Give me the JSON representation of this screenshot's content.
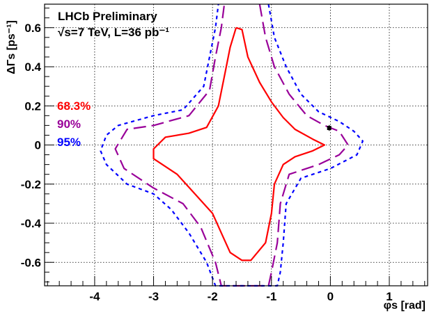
{
  "chart_data": {
    "type": "contour",
    "title_lines": [
      "LHCb Preliminary",
      "√s=7 TeV, L=36 pb⁻¹"
    ],
    "xlabel": "φs [rad]",
    "ylabel": "ΔΓs [ps⁻¹]",
    "xlim": [
      -4.85,
      1.65
    ],
    "ylim": [
      -0.72,
      0.72
    ],
    "x_ticks": [
      -4,
      -3,
      -2,
      -1,
      0,
      1
    ],
    "y_ticks": [
      -0.6,
      -0.4,
      -0.2,
      0,
      0.2,
      0.4,
      0.6
    ],
    "x_tick_labels": [
      "-4",
      "-3",
      "-2",
      "-1",
      "0",
      "1"
    ],
    "y_tick_labels": [
      "-0.6",
      "-0.4",
      "-0.2",
      "0",
      "0.2",
      "0.4",
      "0.6"
    ],
    "grid": true,
    "legend_placement": "left",
    "series": [
      {
        "name": "68.3%",
        "color": "#ff0000",
        "style": "solid",
        "points": [
          [
            -1.6,
            0.6
          ],
          [
            -1.5,
            0.59
          ],
          [
            -1.4,
            0.45
          ],
          [
            -1.2,
            0.32
          ],
          [
            -1.0,
            0.22
          ],
          [
            -0.8,
            0.14
          ],
          [
            -0.6,
            0.08
          ],
          [
            -0.3,
            0.03
          ],
          [
            -0.1,
            0.0
          ],
          [
            -0.3,
            -0.03
          ],
          [
            -0.6,
            -0.06
          ],
          [
            -0.8,
            -0.1
          ],
          [
            -0.95,
            -0.2
          ],
          [
            -1.0,
            -0.35
          ],
          [
            -1.1,
            -0.5
          ],
          [
            -1.35,
            -0.59
          ],
          [
            -1.5,
            -0.59
          ],
          [
            -1.7,
            -0.55
          ],
          [
            -1.85,
            -0.45
          ],
          [
            -2.0,
            -0.35
          ],
          [
            -2.3,
            -0.25
          ],
          [
            -2.6,
            -0.15
          ],
          [
            -3.0,
            -0.07
          ],
          [
            -3.0,
            -0.02
          ],
          [
            -2.8,
            0.04
          ],
          [
            -2.4,
            0.06
          ],
          [
            -2.1,
            0.09
          ],
          [
            -1.9,
            0.2
          ],
          [
            -1.8,
            0.35
          ],
          [
            -1.7,
            0.5
          ],
          [
            -1.6,
            0.6
          ]
        ]
      },
      {
        "name": "90%",
        "color": "#990099",
        "style": "longdash",
        "points": [
          [
            -1.2,
            0.72
          ],
          [
            -1.1,
            0.55
          ],
          [
            -0.95,
            0.4
          ],
          [
            -0.7,
            0.26
          ],
          [
            -0.4,
            0.15
          ],
          [
            -0.1,
            0.1
          ],
          [
            0.15,
            0.07
          ],
          [
            0.3,
            0.0
          ],
          [
            0.15,
            -0.05
          ],
          [
            -0.2,
            -0.1
          ],
          [
            -0.7,
            -0.15
          ],
          [
            -0.85,
            -0.3
          ],
          [
            -0.9,
            -0.5
          ],
          [
            -1.0,
            -0.65
          ],
          [
            -1.05,
            -0.72
          ],
          [
            -1.85,
            -0.72
          ],
          [
            -1.95,
            -0.6
          ],
          [
            -2.2,
            -0.42
          ],
          [
            -2.5,
            -0.3
          ],
          [
            -3.0,
            -0.22
          ],
          [
            -3.5,
            -0.12
          ],
          [
            -3.65,
            -0.02
          ],
          [
            -3.45,
            0.08
          ],
          [
            -3.0,
            0.1
          ],
          [
            -2.4,
            0.15
          ],
          [
            -2.05,
            0.28
          ],
          [
            -1.95,
            0.45
          ],
          [
            -1.85,
            0.6
          ],
          [
            -1.8,
            0.72
          ]
        ]
      },
      {
        "name": "95%",
        "color": "#0000ff",
        "style": "dashed",
        "points": [
          [
            -1.05,
            0.72
          ],
          [
            -0.95,
            0.55
          ],
          [
            -0.75,
            0.4
          ],
          [
            -0.5,
            0.26
          ],
          [
            -0.2,
            0.17
          ],
          [
            0.15,
            0.12
          ],
          [
            0.4,
            0.07
          ],
          [
            0.55,
            0.02
          ],
          [
            0.45,
            -0.05
          ],
          [
            0.0,
            -0.12
          ],
          [
            -0.5,
            -0.17
          ],
          [
            -0.75,
            -0.3
          ],
          [
            -0.8,
            -0.5
          ],
          [
            -0.85,
            -0.65
          ],
          [
            -0.9,
            -0.72
          ],
          [
            -1.95,
            -0.72
          ],
          [
            -2.1,
            -0.6
          ],
          [
            -2.4,
            -0.45
          ],
          [
            -2.7,
            -0.33
          ],
          [
            -3.0,
            -0.25
          ],
          [
            -3.45,
            -0.2
          ],
          [
            -3.8,
            -0.1
          ],
          [
            -3.9,
            -0.03
          ],
          [
            -3.8,
            0.05
          ],
          [
            -3.6,
            0.1
          ],
          [
            -3.0,
            0.15
          ],
          [
            -2.5,
            0.18
          ],
          [
            -2.15,
            0.3
          ],
          [
            -2.05,
            0.45
          ],
          [
            -1.95,
            0.6
          ],
          [
            -1.9,
            0.72
          ]
        ]
      }
    ],
    "point_with_error": {
      "x": -0.02,
      "y": 0.087,
      "yerr": 0.015
    }
  }
}
